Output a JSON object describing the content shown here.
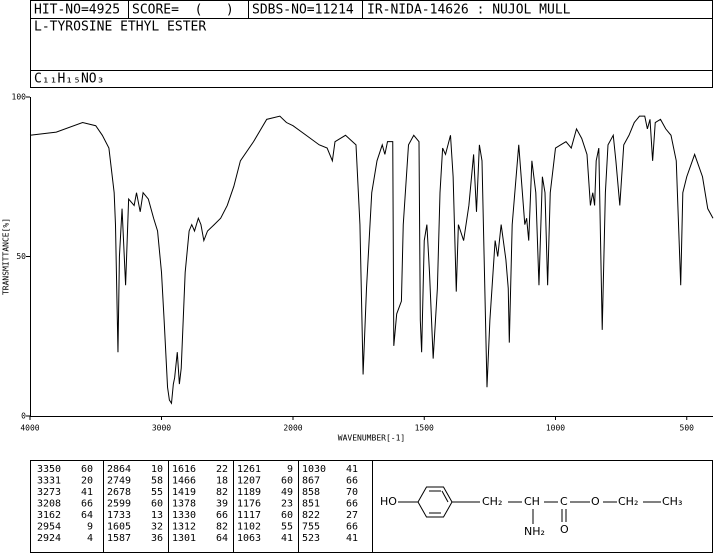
{
  "header": {
    "hit_no": "HIT-NO=4925",
    "score": "SCORE=  (   )",
    "sdbs_no": "SDBS-NO=11214",
    "method": "IR-NIDA-14626 : NUJOL MULL",
    "compound": "L-TYROSINE ETHYL ESTER",
    "formula": "C₁₁H₁₅NO₃"
  },
  "chart_data": {
    "type": "line",
    "xlabel": "WAVENUMBER[-1]",
    "ylabel": "TRANSMITTANCE[%]",
    "xlim": [
      4000,
      400
    ],
    "x_scale_break": 2000,
    "ylim": [
      0,
      100
    ],
    "xticks": [
      4000,
      3000,
      2000,
      1500,
      1000,
      500
    ],
    "yticks": [
      0,
      50,
      100
    ],
    "series": [
      {
        "color": "#000000",
        "x": [
          4000,
          3800,
          3600,
          3500,
          3450,
          3400,
          3360,
          3350,
          3331,
          3320,
          3300,
          3273,
          3250,
          3208,
          3190,
          3162,
          3140,
          3100,
          3060,
          3030,
          3000,
          2980,
          2954,
          2940,
          2924,
          2910,
          2900,
          2880,
          2864,
          2850,
          2820,
          2790,
          2770,
          2749,
          2720,
          2700,
          2678,
          2650,
          2599,
          2550,
          2500,
          2450,
          2400,
          2300,
          2200,
          2100,
          2050,
          2000,
          1950,
          1900,
          1870,
          1860,
          1850,
          1840,
          1800,
          1760,
          1745,
          1733,
          1720,
          1700,
          1680,
          1660,
          1650,
          1640,
          1620,
          1616,
          1605,
          1587,
          1580,
          1560,
          1540,
          1520,
          1515,
          1510,
          1500,
          1490,
          1480,
          1466,
          1450,
          1440,
          1430,
          1419,
          1400,
          1390,
          1378,
          1370,
          1350,
          1330,
          1312,
          1301,
          1290,
          1280,
          1261,
          1250,
          1230,
          1220,
          1207,
          1189,
          1180,
          1176,
          1165,
          1140,
          1117,
          1110,
          1102,
          1090,
          1075,
          1063,
          1050,
          1040,
          1030,
          1020,
          1000,
          980,
          960,
          940,
          920,
          900,
          880,
          867,
          858,
          851,
          845,
          835,
          822,
          810,
          800,
          780,
          770,
          755,
          740,
          720,
          700,
          680,
          660,
          650,
          640,
          630,
          620,
          600,
          580,
          560,
          540,
          523,
          515,
          500,
          470,
          440,
          420,
          400
        ],
        "values": [
          88,
          89,
          92,
          91,
          88,
          84,
          70,
          60,
          20,
          50,
          65,
          41,
          68,
          66,
          70,
          64,
          70,
          68,
          62,
          58,
          45,
          30,
          9,
          5,
          4,
          10,
          12,
          20,
          10,
          15,
          45,
          58,
          60,
          58,
          62,
          60,
          55,
          58,
          60,
          62,
          66,
          72,
          80,
          86,
          93,
          94,
          92,
          91,
          88,
          85,
          84,
          82,
          80,
          86,
          88,
          85,
          60,
          13,
          40,
          70,
          80,
          85,
          82,
          86,
          86,
          22,
          32,
          36,
          60,
          85,
          88,
          86,
          30,
          20,
          55,
          60,
          45,
          18,
          40,
          70,
          84,
          82,
          88,
          75,
          39,
          60,
          55,
          66,
          82,
          64,
          85,
          80,
          9,
          30,
          55,
          50,
          60,
          49,
          40,
          23,
          60,
          85,
          60,
          62,
          55,
          80,
          70,
          41,
          75,
          70,
          41,
          70,
          84,
          85,
          86,
          84,
          90,
          87,
          82,
          66,
          70,
          66,
          80,
          84,
          27,
          70,
          85,
          88,
          80,
          66,
          85,
          88,
          92,
          94,
          94,
          90,
          93,
          80,
          92,
          93,
          90,
          88,
          80,
          41,
          70,
          75,
          82,
          75,
          65,
          62
        ]
      }
    ]
  },
  "peak_table": {
    "columns": [
      [
        [
          3350,
          60
        ],
        [
          3331,
          20
        ],
        [
          3273,
          41
        ],
        [
          3208,
          66
        ],
        [
          3162,
          64
        ],
        [
          2954,
          9
        ],
        [
          2924,
          4
        ]
      ],
      [
        [
          2864,
          10
        ],
        [
          2749,
          58
        ],
        [
          2678,
          55
        ],
        [
          2599,
          60
        ],
        [
          1733,
          13
        ],
        [
          1605,
          32
        ],
        [
          1587,
          36
        ]
      ],
      [
        [
          1616,
          22
        ],
        [
          1466,
          18
        ],
        [
          1419,
          82
        ],
        [
          1378,
          39
        ],
        [
          1330,
          66
        ],
        [
          1312,
          82
        ],
        [
          1301,
          64
        ]
      ],
      [
        [
          1261,
          9
        ],
        [
          1207,
          60
        ],
        [
          1189,
          49
        ],
        [
          1176,
          23
        ],
        [
          1117,
          60
        ],
        [
          1102,
          55
        ],
        [
          1063,
          41
        ]
      ],
      [
        [
          1030,
          41
        ],
        [
          867,
          66
        ],
        [
          858,
          70
        ],
        [
          851,
          66
        ],
        [
          822,
          27
        ],
        [
          755,
          66
        ],
        [
          523,
          41
        ]
      ]
    ]
  },
  "structure": {
    "labels": [
      "HO",
      "CH₂",
      "CH",
      "C",
      "O",
      "CH₂",
      "CH₃",
      "NH₂",
      "O"
    ]
  }
}
